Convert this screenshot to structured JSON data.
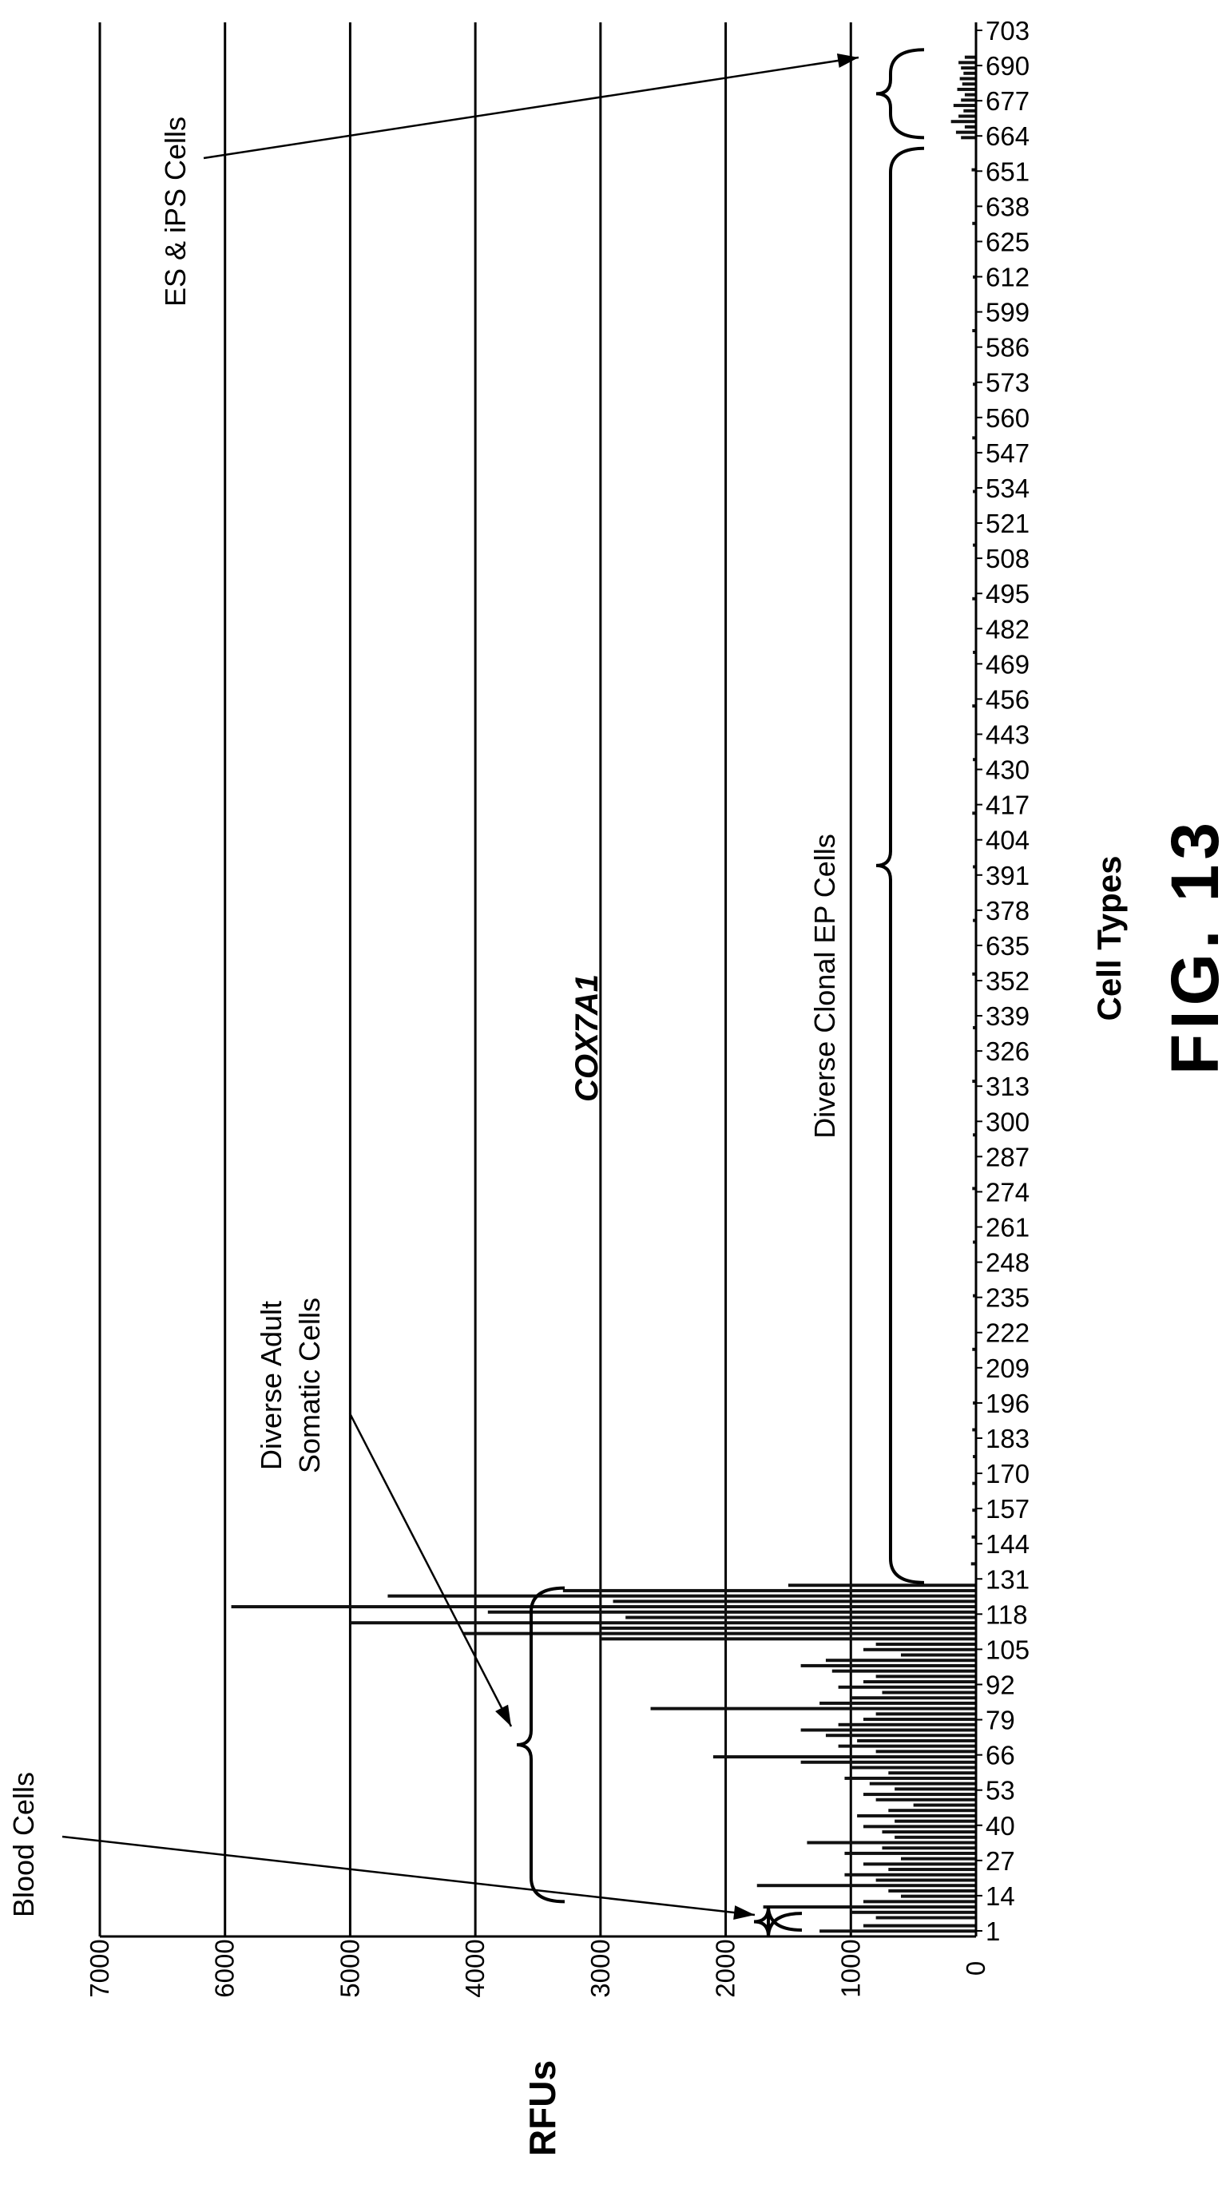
{
  "chart_data": {
    "type": "bar",
    "title": "COX7A1",
    "xlabel": "Cell Types",
    "ylabel": "RFUs",
    "ylim": [
      0,
      7000
    ],
    "y_ticks": [
      0,
      1000,
      2000,
      3000,
      4000,
      5000,
      6000,
      7000
    ],
    "x_tick_labels": [
      "1",
      "14",
      "27",
      "40",
      "53",
      "66",
      "79",
      "92",
      "105",
      "118",
      "131",
      "144",
      "157",
      "170",
      "183",
      "196",
      "209",
      "222",
      "235",
      "248",
      "261",
      "274",
      "287",
      "300",
      "313",
      "326",
      "339",
      "352",
      "635",
      "378",
      "391",
      "404",
      "417",
      "430",
      "443",
      "456",
      "469",
      "482",
      "495",
      "508",
      "521",
      "534",
      "547",
      "560",
      "573",
      "586",
      "599",
      "612",
      "625",
      "638",
      "651",
      "664",
      "677",
      "690",
      "703"
    ],
    "xlim": [
      1,
      715
    ],
    "grid": "horizontal",
    "orientation": "rotated 90 degrees counter-clockwise",
    "series": [
      {
        "x": [
          3,
          5,
          8,
          10,
          12,
          14,
          16,
          18,
          20,
          22,
          24,
          26,
          28,
          30,
          32,
          34,
          36,
          38,
          40,
          42,
          44,
          46,
          48,
          50,
          52,
          54,
          56,
          58,
          60,
          62,
          64,
          66,
          68,
          70,
          72,
          74,
          76,
          78,
          80,
          82,
          84,
          86,
          88,
          90,
          92,
          94,
          96,
          98,
          100,
          102,
          104,
          106,
          108,
          110,
          112,
          114,
          116,
          118,
          120,
          122,
          124,
          126,
          128,
          130,
          132,
          140,
          150,
          160,
          170,
          180,
          190,
          200,
          220,
          240,
          260,
          280,
          300,
          320,
          340,
          360,
          380,
          400,
          420,
          440,
          460,
          480,
          500,
          520,
          540,
          560,
          580,
          600,
          620,
          640,
          660,
          672,
          674,
          676,
          678,
          680,
          682,
          684,
          686,
          688,
          690,
          692,
          694,
          696,
          698,
          700,
          702
        ],
        "values": [
          1250,
          900,
          800,
          1000,
          1700,
          900,
          600,
          700,
          1750,
          800,
          1050,
          700,
          900,
          600,
          1050,
          750,
          1350,
          650,
          750,
          900,
          650,
          950,
          700,
          500,
          800,
          900,
          650,
          850,
          1050,
          700,
          1000,
          1400,
          2100,
          800,
          1100,
          950,
          1200,
          1400,
          1100,
          900,
          800,
          2600,
          1250,
          1000,
          750,
          1100,
          900,
          800,
          1150,
          1400,
          1200,
          600,
          900,
          800,
          3000,
          4100,
          3000,
          5000,
          2800,
          3900,
          5950,
          2900,
          4700,
          3300,
          1500,
          40,
          35,
          30,
          30,
          25,
          30,
          25,
          30,
          25,
          25,
          30,
          25,
          30,
          25,
          30,
          25,
          25,
          30,
          25,
          30,
          25,
          30,
          25,
          25,
          30,
          25,
          30,
          25,
          30,
          35,
          120,
          160,
          90,
          200,
          140,
          100,
          180,
          120,
          90,
          150,
          110,
          130,
          100,
          120,
          140,
          90
        ]
      }
    ],
    "annotations": [
      {
        "label": "Blood Cells",
        "range": [
          1,
          12
        ]
      },
      {
        "label": "Diverse Adult Somatic Cells",
        "label_lines": [
          "Diverse Adult",
          "Somatic Cells"
        ],
        "range": [
          14,
          131
        ]
      },
      {
        "label": "Diverse Clonal EP Cells",
        "range": [
          133,
          668
        ]
      },
      {
        "label": "ES & iPS Cells",
        "range": [
          672,
          703
        ]
      }
    ],
    "figure_label": "FIG. 13"
  }
}
